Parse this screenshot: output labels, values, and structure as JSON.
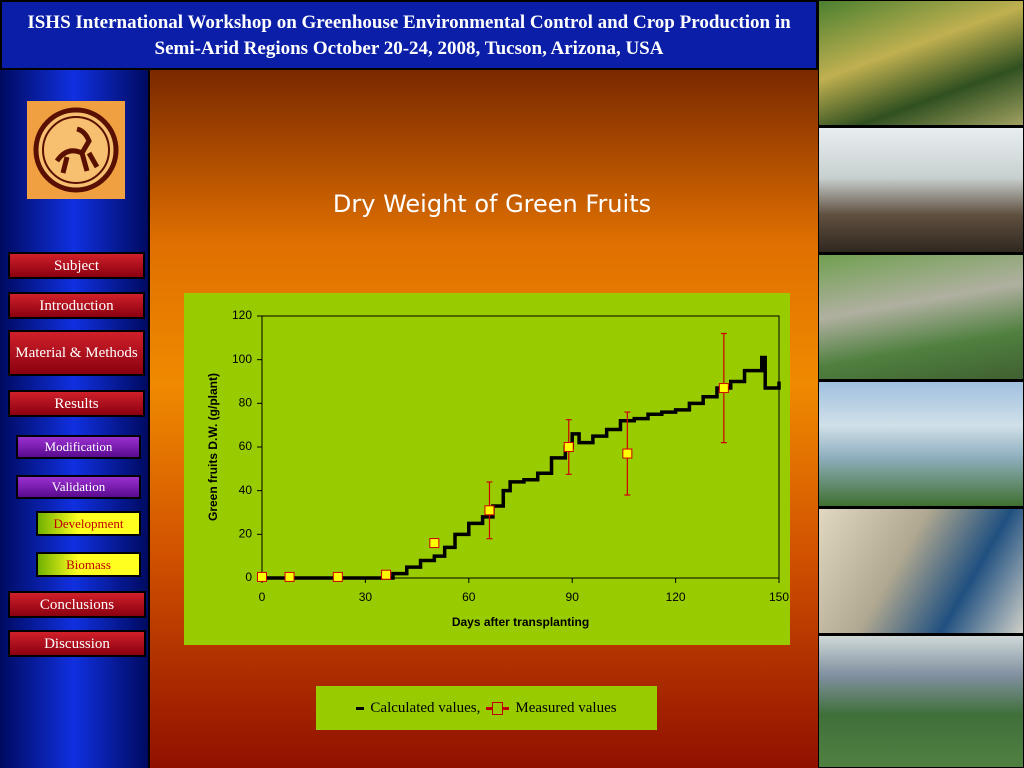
{
  "header": {
    "title": "ISHS International Workshop on Greenhouse Environmental Control and Crop Production in Semi-Arid Regions October 20-24, 2008, Tucson, Arizona, USA"
  },
  "nav": [
    "Subject",
    "Introduction",
    "Material & Methods",
    "Results",
    "Modification",
    "Validation",
    "Development",
    "Biomass",
    "Conclusions",
    "Discussion"
  ],
  "chart_data": {
    "type": "line",
    "title": "Dry Weight of Green Fruits",
    "x_label": "Days after transplanting",
    "y_label": "Green fruits D.W. (g/plant)",
    "xlim": [
      0,
      150
    ],
    "xticks": [
      0,
      30,
      60,
      90,
      120,
      150
    ],
    "ylim": [
      0,
      120
    ],
    "yticks": [
      0,
      20,
      40,
      60,
      80,
      100,
      120
    ],
    "series": [
      {
        "name": "Calculated values,",
        "color": "#000000",
        "x": [
          0,
          36,
          38,
          42,
          46,
          50,
          53,
          56,
          60,
          64,
          67,
          70,
          72,
          76,
          80,
          84,
          88,
          90,
          92,
          96,
          100,
          104,
          108,
          112,
          116,
          120,
          124,
          128,
          132,
          136,
          140,
          145,
          146,
          148,
          150
        ],
        "values": [
          0,
          0,
          2,
          5,
          8,
          10,
          14,
          20,
          25,
          28,
          33,
          40,
          44,
          45,
          48,
          55,
          60,
          66,
          62,
          65,
          68,
          72,
          73,
          75,
          76,
          77,
          80,
          83,
          87,
          90,
          95,
          101,
          87,
          87,
          90
        ]
      },
      {
        "name": "Measured values",
        "color": "#cc0000",
        "marker_color": "#ffff00",
        "x": [
          0,
          8,
          22,
          36,
          50,
          66,
          89,
          106,
          134
        ],
        "values": [
          0.5,
          0.5,
          0.5,
          1.5,
          16,
          31,
          60,
          57,
          87
        ],
        "errors": [
          null,
          null,
          null,
          null,
          null,
          13,
          12.5,
          19,
          25
        ]
      }
    ]
  }
}
